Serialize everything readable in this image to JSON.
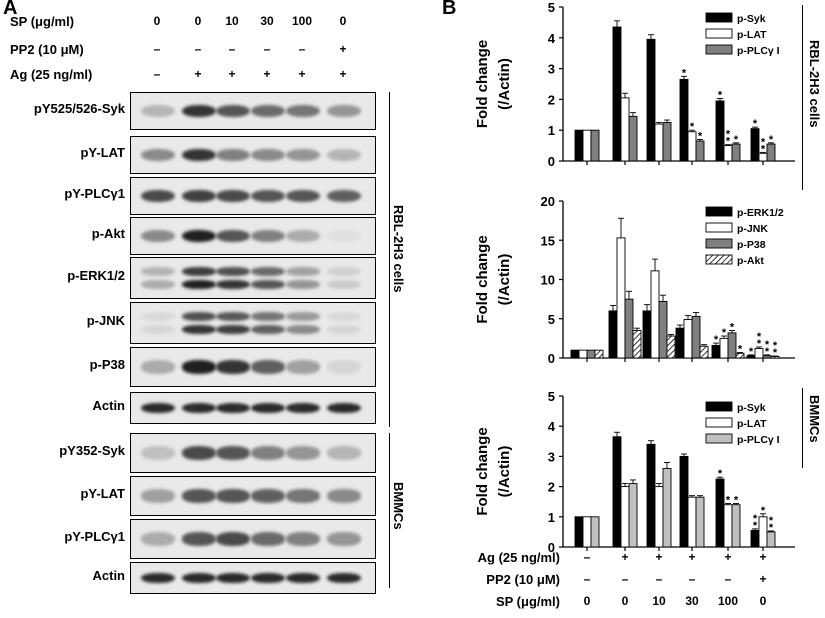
{
  "panel_a": {
    "letter": "A",
    "conditions": [
      {
        "label": "SP (μg/ml)",
        "values": [
          "0",
          "0",
          "10",
          "30",
          "100",
          "0"
        ]
      },
      {
        "label": "PP2 (10 μM)",
        "values": [
          "–",
          "–",
          "–",
          "–",
          "–",
          "+"
        ]
      },
      {
        "label": "Ag (25 ng/ml)",
        "values": [
          "–",
          "+",
          "+",
          "+",
          "+",
          "+"
        ]
      }
    ],
    "blots": [
      {
        "label": "pY525/526-Syk",
        "intensities": [
          0.25,
          0.85,
          0.7,
          0.6,
          0.55,
          0.4
        ]
      },
      {
        "label": "pY-LAT",
        "intensities": [
          0.45,
          0.85,
          0.5,
          0.45,
          0.4,
          0.25
        ]
      },
      {
        "label": "pY-PLCγ1",
        "intensities": [
          0.75,
          0.8,
          0.75,
          0.7,
          0.7,
          0.65
        ]
      },
      {
        "label": "p-Akt",
        "intensities": [
          0.45,
          0.95,
          0.7,
          0.5,
          0.3,
          0.05
        ]
      },
      {
        "label": "p-ERK1/2",
        "intensities": [
          0.3,
          0.95,
          0.85,
          0.7,
          0.4,
          0.15
        ]
      },
      {
        "label": "p-JNK",
        "intensities": [
          0.1,
          0.85,
          0.8,
          0.65,
          0.45,
          0.1
        ]
      },
      {
        "label": "p-P38",
        "intensities": [
          0.3,
          0.95,
          0.85,
          0.65,
          0.35,
          0.1
        ]
      },
      {
        "label": "Actin",
        "intensities": [
          0.9,
          0.9,
          0.9,
          0.9,
          0.9,
          0.9
        ]
      },
      {
        "label": "pY352-Syk",
        "intensities": [
          0.2,
          0.75,
          0.7,
          0.5,
          0.4,
          0.25
        ]
      },
      {
        "label": "pY-LAT",
        "intensities": [
          0.35,
          0.7,
          0.7,
          0.65,
          0.55,
          0.45
        ]
      },
      {
        "label": "pY-PLCγ1",
        "intensities": [
          0.3,
          0.7,
          0.75,
          0.6,
          0.5,
          0.4
        ]
      },
      {
        "label": "Actin",
        "intensities": [
          0.9,
          0.9,
          0.9,
          0.9,
          0.9,
          0.9
        ]
      }
    ],
    "group_labels": [
      "RBL-2H3 cells",
      "BMMCs"
    ]
  },
  "panel_b": {
    "letter": "B",
    "group_labels": [
      "RBL-2H3 cells",
      "BMMCs"
    ],
    "x_conditions": [
      {
        "label": "Ag (25 ng/ml)",
        "values": [
          "–",
          "+",
          "+",
          "+",
          "+",
          "+"
        ]
      },
      {
        "label": "PP2 (10 μM)",
        "values": [
          "–",
          "–",
          "–",
          "–",
          "–",
          "+"
        ]
      },
      {
        "label": "SP (μg/ml)",
        "values": [
          "0",
          "0",
          "10",
          "30",
          "100",
          "0"
        ]
      }
    ]
  },
  "chart_data": [
    {
      "type": "bar",
      "ylabel": "Fold change\n(/Actin)",
      "ylim": [
        0,
        5
      ],
      "yticks": [
        "0",
        "1",
        "2",
        "3",
        "4",
        "5"
      ],
      "legend": "top-right",
      "series": [
        {
          "name": "p-Syk",
          "values": [
            1.0,
            4.35,
            3.95,
            2.65,
            1.95,
            1.05
          ],
          "errors": [
            0,
            0.2,
            0.15,
            0.1,
            0.08,
            0.05
          ],
          "stars": [
            "",
            "",
            "",
            "*",
            "*",
            "*"
          ],
          "fill": "#000000"
        },
        {
          "name": "p-LAT",
          "values": [
            1.0,
            2.05,
            1.2,
            0.95,
            0.5,
            0.25
          ],
          "errors": [
            0,
            0.15,
            0.05,
            0.05,
            0.03,
            0.03
          ],
          "stars": [
            "",
            "",
            "",
            "*",
            "**",
            "**"
          ],
          "fill": "#ffffff"
        },
        {
          "name": "p-PLCγ I",
          "values": [
            1.0,
            1.45,
            1.25,
            0.65,
            0.55,
            0.55
          ],
          "errors": [
            0,
            0.12,
            0.08,
            0.05,
            0.04,
            0.04
          ],
          "stars": [
            "",
            "",
            "",
            "*",
            "*",
            "*"
          ],
          "fill": "#808080"
        }
      ]
    },
    {
      "type": "bar",
      "ylabel": "Fold change\n(/Actin)",
      "ylim": [
        0,
        20
      ],
      "yticks": [
        "0",
        "5",
        "10",
        "15",
        "20"
      ],
      "legend": "top-right",
      "series": [
        {
          "name": "p-ERK1/2",
          "values": [
            1.0,
            6.0,
            6.0,
            3.8,
            1.6,
            0.3
          ],
          "errors": [
            0,
            0.7,
            0.8,
            0.4,
            0.3,
            0.1
          ],
          "stars": [
            "",
            "",
            "",
            "",
            "*",
            "*"
          ],
          "fill": "#000000"
        },
        {
          "name": "p-JNK",
          "values": [
            1.0,
            15.3,
            11.1,
            4.9,
            2.5,
            1.2
          ],
          "errors": [
            0,
            2.5,
            1.5,
            0.5,
            0.3,
            0.2
          ],
          "stars": [
            "",
            "",
            "",
            "",
            "*",
            "**"
          ],
          "fill": "#ffffff"
        },
        {
          "name": "p-P38",
          "values": [
            1.0,
            7.5,
            7.2,
            5.3,
            3.2,
            0.3
          ],
          "errors": [
            0,
            1.0,
            0.8,
            0.5,
            0.3,
            0.1
          ],
          "stars": [
            "",
            "",
            "",
            "",
            "*",
            "**"
          ],
          "fill": "#808080"
        },
        {
          "name": "p-Akt",
          "values": [
            1.0,
            3.5,
            2.8,
            1.5,
            0.6,
            0.2
          ],
          "errors": [
            0,
            0.3,
            0.2,
            0.2,
            0.1,
            0.05
          ],
          "stars": [
            "",
            "",
            "",
            "",
            "*",
            "**"
          ],
          "fill": "hatch"
        }
      ]
    },
    {
      "type": "bar",
      "ylabel": "Fold change\n(/Actin)",
      "ylim": [
        0,
        5
      ],
      "yticks": [
        "0",
        "1",
        "2",
        "3",
        "4",
        "5"
      ],
      "legend": "top-right",
      "series": [
        {
          "name": "p-Syk",
          "values": [
            1.0,
            3.65,
            3.4,
            3.0,
            2.25,
            0.55
          ],
          "errors": [
            0,
            0.15,
            0.12,
            0.08,
            0.06,
            0.05
          ],
          "stars": [
            "",
            "",
            "",
            "",
            "*",
            "**"
          ],
          "fill": "#000000"
        },
        {
          "name": "p-LAT",
          "values": [
            1.0,
            2.0,
            2.0,
            1.65,
            1.4,
            1.0
          ],
          "errors": [
            0,
            0.1,
            0.1,
            0.05,
            0.04,
            0.1
          ],
          "stars": [
            "",
            "",
            "",
            "",
            "*",
            "*"
          ],
          "fill": "#ffffff"
        },
        {
          "name": "p-PLCγ I",
          "values": [
            1.0,
            2.1,
            2.6,
            1.65,
            1.4,
            0.5
          ],
          "errors": [
            0,
            0.12,
            0.2,
            0.05,
            0.04,
            0.03
          ],
          "stars": [
            "",
            "",
            "",
            "",
            "*",
            "**"
          ],
          "fill": "#c0c0c0"
        }
      ]
    }
  ]
}
